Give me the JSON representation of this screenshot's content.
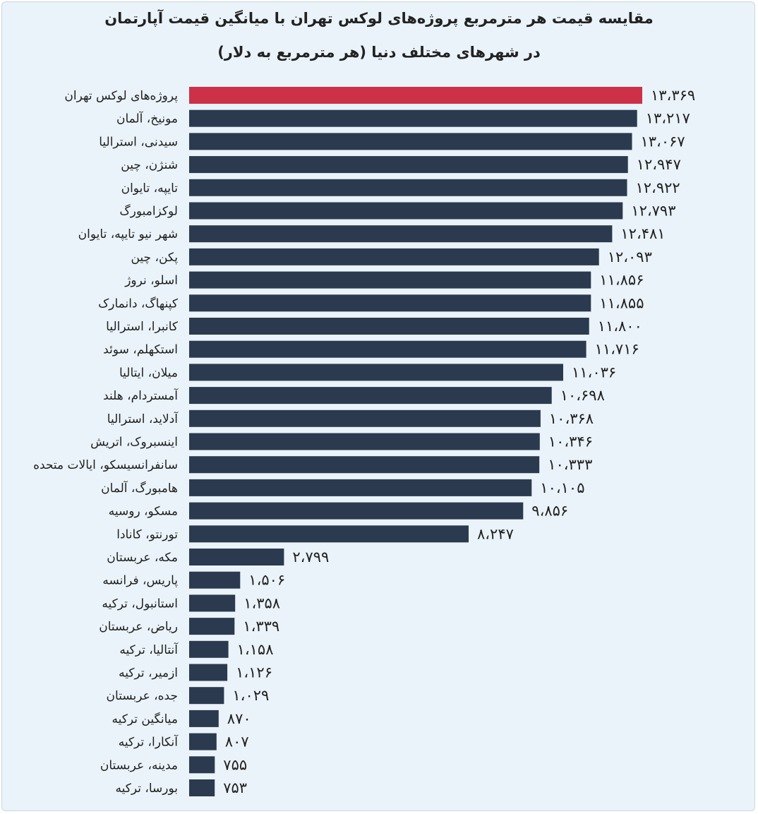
{
  "colors": {
    "bar": "#2b3a4f",
    "highlight": "#cd3148",
    "background": "#eaf3f9"
  },
  "chart_data": {
    "type": "bar",
    "orientation": "horizontal",
    "title": "مقایسه قیمت هر مترمربع پروژه‌های لوکس تهران با میانگین قیمت آپارتمان",
    "subtitle": "در شهرهای مختلف دنیا (هر مترمربع به دلار)",
    "xlabel": "",
    "ylabel": "",
    "grid": false,
    "legend": "none",
    "xlim": [
      0,
      13369
    ],
    "highlight_index": 0,
    "categories": [
      "پروژه‌های لوکس تهران",
      "مونیخ، آلمان",
      "سیدنی، استرالیا",
      "شنژن، چین",
      "تایپه، تایوان",
      "لوکزامبورگ",
      "شهر نیو تایپه، تایوان",
      "پکن، چین",
      "اسلو، نروژ",
      "کپنهاگ، دانمارک",
      "کانبرا، استرالیا",
      "استکهلم، سوئد",
      "میلان، ایتالیا",
      "آمستردام، هلند",
      "آدلاید، استرالیا",
      "اینسبروک، اتریش",
      "سانفرانسیسکو، ایالات متحده",
      "هامبورگ، آلمان",
      "مسکو، روسیه",
      "تورنتو، کانادا",
      "مکه، عربستان",
      "پاریس، فرانسه",
      "استانبول، ترکیه",
      "ریاض، عربستان",
      "آنتالیا، ترکیه",
      "ازمیر، ترکیه",
      "جده، عربستان",
      "میانگین ترکیه",
      "آنکارا، ترکیه",
      "مدینه، عربستان",
      "بورسا، ترکیه"
    ],
    "values": [
      13369,
      13217,
      13067,
      12947,
      12922,
      12793,
      12481,
      12093,
      11856,
      11855,
      11800,
      11716,
      11036,
      10698,
      10368,
      10346,
      10333,
      10105,
      9856,
      8247,
      2799,
      1506,
      1358,
      1339,
      1158,
      1126,
      1029,
      870,
      807,
      755,
      753
    ],
    "value_labels": [
      "۱۳،۳۶۹",
      "۱۳،۲۱۷",
      "۱۳،۰۶۷",
      "۱۲،۹۴۷",
      "۱۲،۹۲۲",
      "۱۲،۷۹۳",
      "۱۲،۴۸۱",
      "۱۲،۰۹۳",
      "۱۱،۸۵۶",
      "۱۱،۸۵۵",
      "۱۱،۸۰۰",
      "۱۱،۷۱۶",
      "۱۱،۰۳۶",
      "۱۰،۶۹۸",
      "۱۰،۳۶۸",
      "۱۰،۳۴۶",
      "۱۰،۳۳۳",
      "۱۰،۱۰۵",
      "۹،۸۵۶",
      "۸،۲۴۷",
      "۲،۷۹۹",
      "۱،۵۰۶",
      "۱،۳۵۸",
      "۱،۳۳۹",
      "۱،۱۵۸",
      "۱،۱۲۶",
      "۱،۰۲۹",
      "۸۷۰",
      "۸۰۷",
      "۷۵۵",
      "۷۵۳"
    ]
  }
}
